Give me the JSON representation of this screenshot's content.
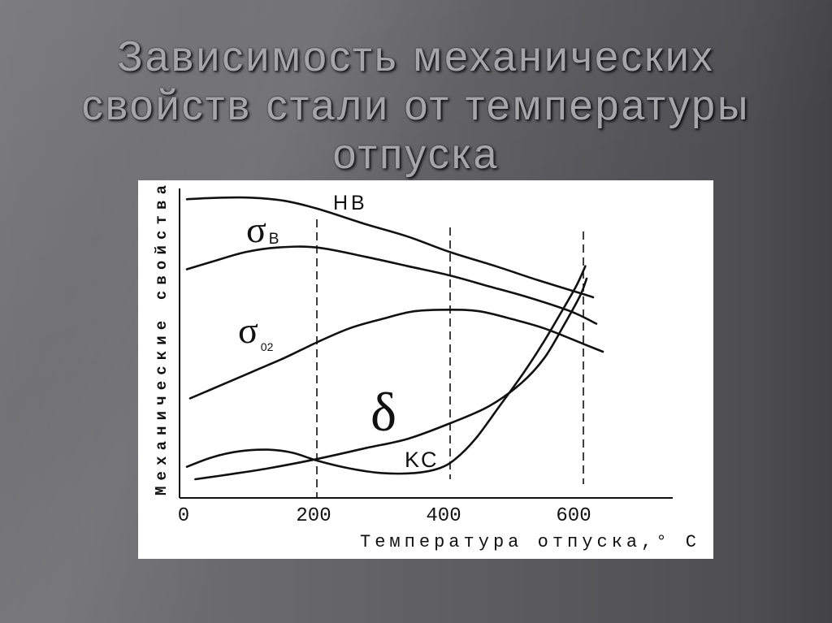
{
  "slide": {
    "title_lines": [
      "Зависимость механических",
      "свойств стали от температуры",
      "отпуска"
    ],
    "colors": {
      "title_text": "#a6a6a8",
      "chart_background": "#ffffff",
      "chart_ink": "#111111"
    }
  },
  "chart_data": {
    "type": "line",
    "xlabel": "Температура отпуска,° C",
    "ylabel": "Механические свойства",
    "xlim": [
      0,
      750
    ],
    "ylim": [
      0,
      100
    ],
    "xticks": [
      "0",
      "200",
      "400",
      "600"
    ],
    "yticks": [],
    "grid": false,
    "reference_lines_x": [
      205,
      410,
      615
    ],
    "series": [
      {
        "name": "HB",
        "x": [
          5,
          55,
          105,
          155,
          205,
          280,
          345,
          410,
          480,
          545,
          615,
          630
        ],
        "y": [
          96,
          96.5,
          96.5,
          95.5,
          93,
          88,
          84,
          79,
          74.5,
          70,
          65.5,
          64.5
        ]
      },
      {
        "name": "σB",
        "x": [
          5,
          45,
          95,
          145,
          205,
          280,
          345,
          410,
          470,
          530,
          595,
          635
        ],
        "y": [
          73.5,
          76,
          79,
          80.5,
          80.5,
          77.5,
          74.5,
          71.5,
          68,
          64.5,
          60,
          56
        ]
      },
      {
        "name": "σ02",
        "x": [
          10,
          55,
          105,
          155,
          205,
          255,
          305,
          355,
          410,
          455,
          505,
          555,
          615,
          645
        ],
        "y": [
          32,
          36,
          40.5,
          45,
          50,
          54.5,
          57.5,
          60,
          60.5,
          60,
          57.5,
          54.5,
          49.5,
          47
        ]
      },
      {
        "name": "δ",
        "x": [
          18,
          68,
          130,
          205,
          280,
          345,
          410,
          470,
          520,
          555,
          585,
          610,
          620
        ],
        "y": [
          6,
          7.5,
          9.5,
          12.5,
          16,
          19,
          24,
          29.5,
          37,
          45,
          55.5,
          65,
          70.5
        ]
      },
      {
        "name": "KC",
        "x": [
          5,
          43,
          86,
          130,
          168,
          205,
          255,
          305,
          355,
          393,
          418,
          449,
          486,
          524,
          555,
          586,
          605,
          618
        ],
        "y": [
          10,
          13,
          15,
          15.5,
          14.5,
          12,
          9.5,
          8,
          8,
          9.5,
          12.5,
          19,
          29.5,
          40.5,
          50.5,
          61.5,
          68.5,
          74.5
        ]
      }
    ]
  }
}
